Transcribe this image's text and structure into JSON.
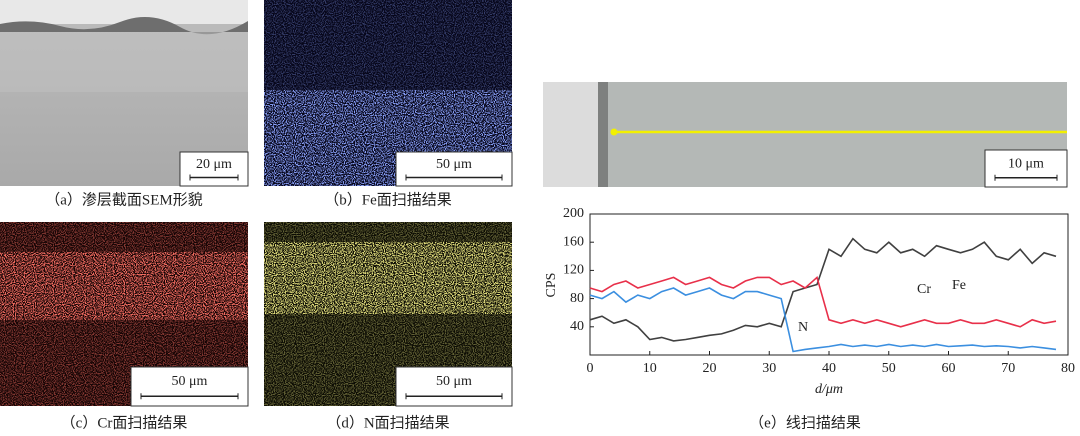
{
  "panels": [
    {
      "caption": "（a）渗层截面SEM形貌",
      "scale_bar": "20 μm"
    },
    {
      "caption": "（b）Fe面扫描结果",
      "scale_bar": "50 μm"
    },
    {
      "caption": "（c）Cr面扫描结果",
      "scale_bar": "50 μm"
    },
    {
      "caption": "（d）N面扫描结果",
      "scale_bar": "50 μm"
    },
    {
      "caption": "（e）线扫描结果",
      "scale_bar": "10 μm"
    }
  ],
  "chart_data": {
    "type": "line",
    "y_label": "CPS",
    "x_label": "d/μm",
    "x": [
      0,
      2,
      4,
      6,
      8,
      10,
      12,
      14,
      16,
      18,
      20,
      22,
      24,
      26,
      28,
      30,
      32,
      34,
      36,
      38,
      40,
      42,
      44,
      46,
      48,
      50,
      52,
      54,
      56,
      58,
      60,
      62,
      64,
      66,
      68,
      70,
      72,
      74,
      76,
      78
    ],
    "series": [
      {
        "name": "Fe",
        "color": "#404040",
        "values": [
          50,
          55,
          45,
          50,
          40,
          22,
          25,
          20,
          22,
          25,
          28,
          30,
          35,
          42,
          40,
          45,
          40,
          90,
          95,
          100,
          150,
          140,
          165,
          150,
          145,
          160,
          145,
          150,
          140,
          155,
          150,
          145,
          150,
          160,
          140,
          135,
          150,
          130,
          145,
          140
        ]
      },
      {
        "name": "Cr",
        "color": "#e8304a",
        "values": [
          95,
          90,
          100,
          105,
          95,
          100,
          105,
          110,
          100,
          105,
          110,
          100,
          95,
          105,
          110,
          110,
          100,
          105,
          95,
          110,
          50,
          45,
          50,
          45,
          50,
          45,
          40,
          45,
          50,
          45,
          45,
          50,
          45,
          45,
          50,
          45,
          40,
          50,
          45,
          48
        ]
      },
      {
        "name": "N",
        "color": "#3b8fe0",
        "values": [
          85,
          80,
          90,
          75,
          85,
          80,
          90,
          95,
          85,
          90,
          95,
          85,
          80,
          90,
          90,
          85,
          80,
          5,
          8,
          10,
          12,
          15,
          12,
          14,
          12,
          15,
          12,
          14,
          12,
          15,
          12,
          13,
          14,
          12,
          13,
          12,
          10,
          12,
          10,
          8
        ]
      }
    ],
    "xlim": [
      0,
      80
    ],
    "xticks": [
      0,
      10,
      20,
      30,
      40,
      50,
      60,
      70,
      80
    ],
    "ylim": [
      0,
      200
    ],
    "yticks": [
      40,
      80,
      120,
      160,
      200
    ]
  }
}
